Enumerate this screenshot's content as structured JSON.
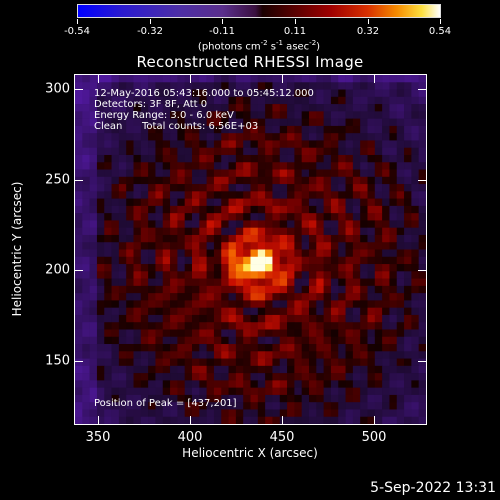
{
  "title": "Reconstructed RHESSI Image",
  "colorbar": {
    "labels": [
      "-0.54",
      "-0.32",
      "-0.11",
      "0.11",
      "0.32",
      "0.54"
    ],
    "unit": "(photons cm",
    "unit_exp1": "-2",
    "unit_mid": " s",
    "unit_exp2": "-1",
    "unit_mid2": " asec",
    "unit_exp3": "-2",
    "unit_end": ")",
    "range": [
      -0.54,
      0.54
    ]
  },
  "info": {
    "line1": "12-May-2016 05:43:16.000 to 05:45:12.000",
    "line2": "Detectors: 3F 8F, Att 0",
    "line3": "Energy Range: 3.0 - 6.0 keV",
    "line4_a": "Clean",
    "line4_b": "Total counts: 6.56E+03",
    "peak": "Position of Peak = [437,201]"
  },
  "axes": {
    "xlabel": "Heliocentric X (arcsec)",
    "ylabel": "Heliocentric Y (arcsec)",
    "xticks": [
      "350",
      "400",
      "450",
      "500"
    ],
    "yticks": [
      "300",
      "250",
      "200",
      "150"
    ],
    "xlim": [
      337,
      527
    ],
    "ylim": [
      113,
      305
    ]
  },
  "image": {
    "peak_x": 437,
    "peak_y": 201,
    "colormap": "RHESSI red-temperature / blue-negative"
  },
  "datestamp": "5-Sep-2022 13:31"
}
